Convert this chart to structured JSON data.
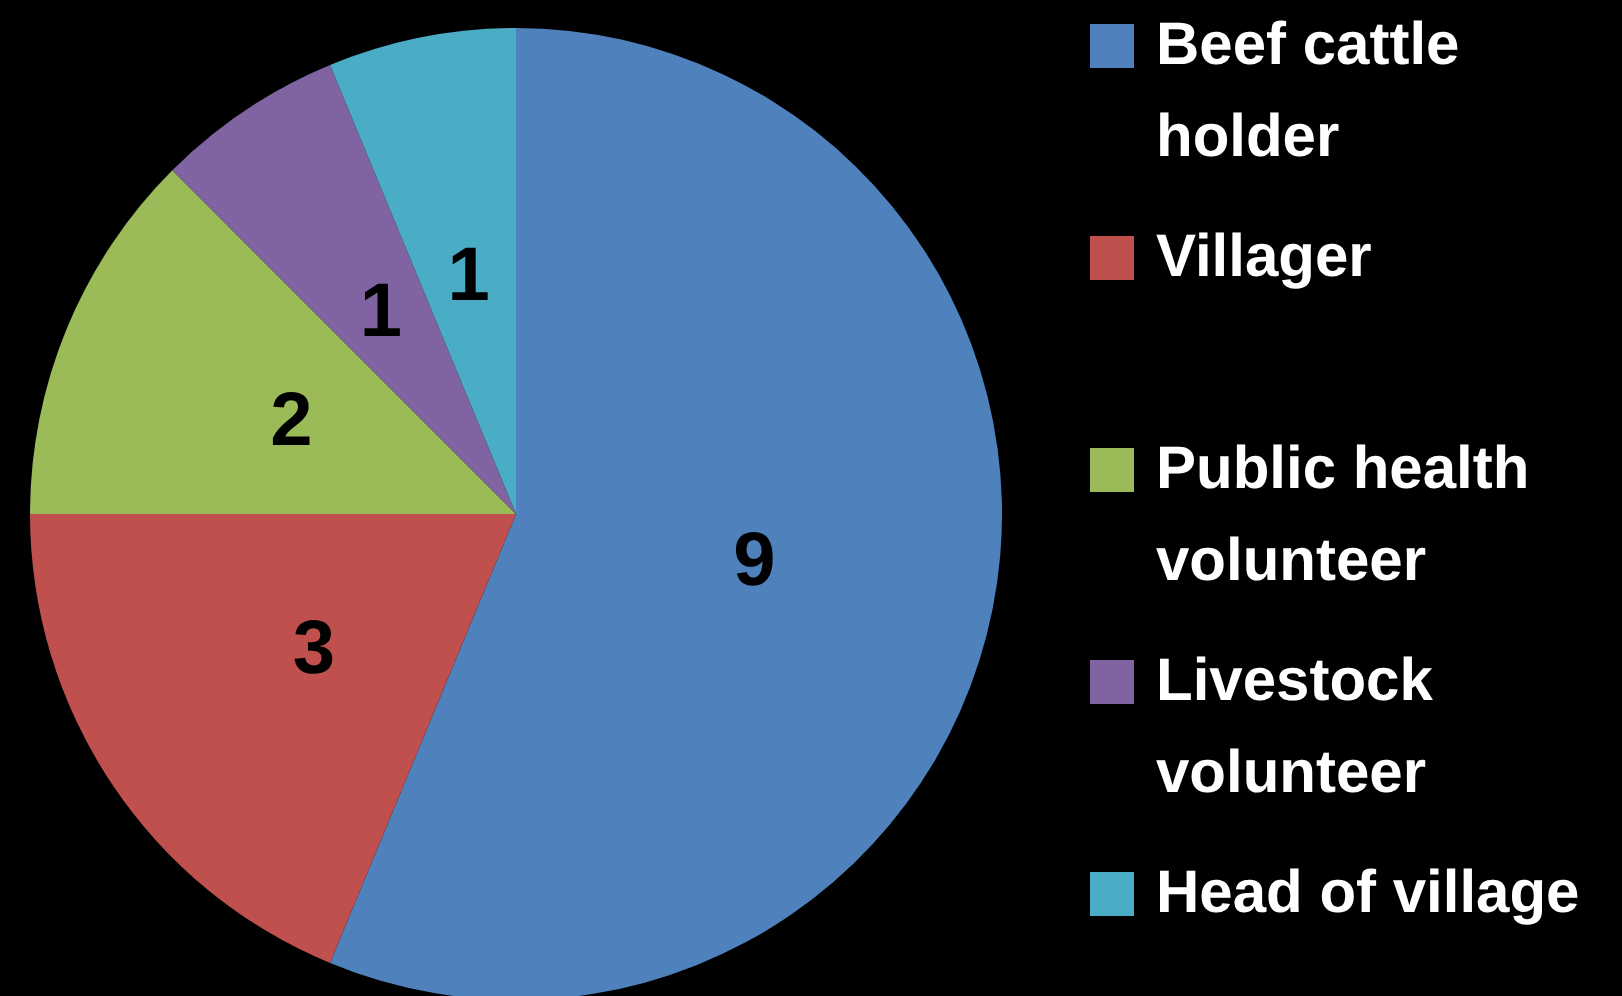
{
  "chart_data": {
    "type": "pie",
    "categories": [
      "Beef cattle holder",
      "Villager",
      "Public health volunteer",
      "Livestock volunteer",
      "Head of village"
    ],
    "values": [
      9,
      3,
      2,
      1,
      1
    ],
    "colors": [
      "#4f81bd",
      "#c0504d",
      "#9bbb59",
      "#8064a2",
      "#4bacc6"
    ],
    "data_labels": true,
    "legend": "right"
  }
}
